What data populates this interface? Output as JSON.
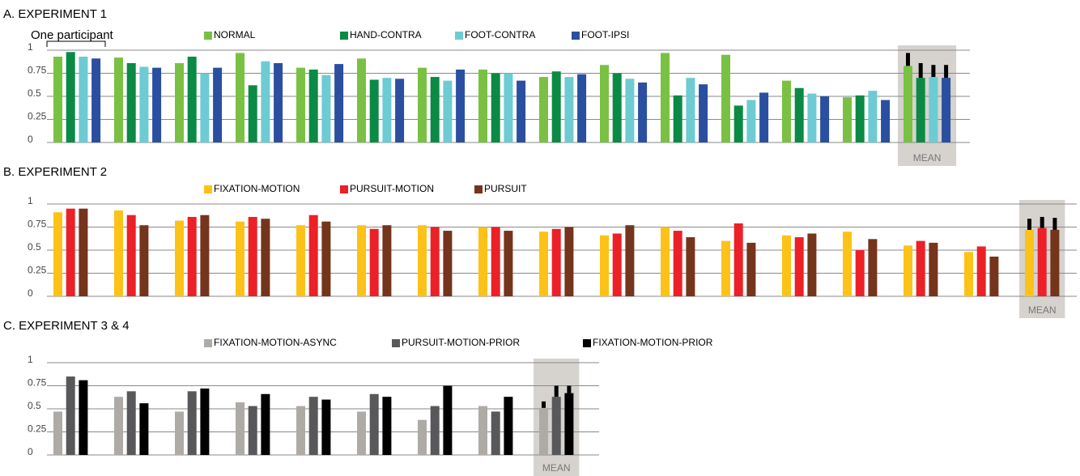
{
  "chart_data": [
    {
      "type": "bar",
      "title": "A. EXPERIMENT 1",
      "annotation": "One participant",
      "categories": [
        null,
        null,
        null,
        null,
        null,
        null,
        null,
        null,
        null,
        null,
        null,
        null,
        null,
        null,
        "MEAN"
      ],
      "series": [
        {
          "name": "NORMAL",
          "color": "#7ac143",
          "values": [
            0.93,
            0.92,
            0.86,
            0.97,
            0.81,
            0.91,
            0.81,
            0.79,
            0.71,
            0.84,
            0.97,
            0.95,
            0.67,
            0.49,
            0.83
          ],
          "errors": [
            null,
            null,
            null,
            null,
            null,
            null,
            null,
            null,
            null,
            null,
            null,
            null,
            null,
            null,
            0.14
          ]
        },
        {
          "name": "HAND-CONTRA",
          "color": "#0a8a44",
          "values": [
            0.98,
            0.86,
            0.93,
            0.62,
            0.79,
            0.68,
            0.71,
            0.75,
            0.77,
            0.75,
            0.51,
            0.4,
            0.59,
            0.51,
            0.7
          ],
          "errors": [
            null,
            null,
            null,
            null,
            null,
            null,
            null,
            null,
            null,
            null,
            null,
            null,
            null,
            null,
            0.16
          ]
        },
        {
          "name": "FOOT-CONTRA",
          "color": "#6dcbd3",
          "values": [
            0.93,
            0.82,
            0.75,
            0.88,
            0.73,
            0.7,
            0.67,
            0.75,
            0.71,
            0.69,
            0.7,
            0.46,
            0.53,
            0.56,
            0.71
          ],
          "errors": [
            null,
            null,
            null,
            null,
            null,
            null,
            null,
            null,
            null,
            null,
            null,
            null,
            null,
            null,
            0.13
          ]
        },
        {
          "name": "FOOT-IPSI",
          "color": "#2a4fa0",
          "values": [
            0.91,
            0.81,
            0.81,
            0.86,
            0.85,
            0.69,
            0.79,
            0.67,
            0.74,
            0.65,
            0.63,
            0.54,
            0.5,
            0.46,
            0.7
          ],
          "errors": [
            null,
            null,
            null,
            null,
            null,
            null,
            null,
            null,
            null,
            null,
            null,
            null,
            null,
            null,
            0.14
          ]
        }
      ],
      "ylim": [
        0,
        1
      ],
      "yticks": [
        0,
        0.25,
        0.5,
        0.75,
        1
      ]
    },
    {
      "type": "bar",
      "title": "B. EXPERIMENT 2",
      "categories": [
        null,
        null,
        null,
        null,
        null,
        null,
        null,
        null,
        null,
        null,
        null,
        null,
        null,
        null,
        null,
        null,
        "MEAN"
      ],
      "series": [
        {
          "name": "FIXATION-MOTION",
          "color": "#fdc217",
          "values": [
            0.91,
            0.93,
            0.82,
            0.81,
            0.77,
            0.77,
            0.77,
            0.75,
            0.7,
            0.66,
            0.75,
            0.6,
            0.66,
            0.7,
            0.55,
            0.48,
            0.72
          ],
          "errors": [
            null,
            null,
            null,
            null,
            null,
            null,
            null,
            null,
            null,
            null,
            null,
            null,
            null,
            null,
            null,
            null,
            0.12
          ]
        },
        {
          "name": "PURSUIT-MOTION",
          "color": "#ec2027",
          "values": [
            0.95,
            0.88,
            0.86,
            0.86,
            0.88,
            0.73,
            0.75,
            0.75,
            0.73,
            0.68,
            0.71,
            0.79,
            0.64,
            0.5,
            0.6,
            0.54,
            0.74
          ],
          "errors": [
            null,
            null,
            null,
            null,
            null,
            null,
            null,
            null,
            null,
            null,
            null,
            null,
            null,
            null,
            null,
            null,
            0.12
          ]
        },
        {
          "name": "PURSUIT",
          "color": "#75341c",
          "values": [
            0.95,
            0.77,
            0.88,
            0.84,
            0.81,
            0.77,
            0.71,
            0.71,
            0.75,
            0.77,
            0.64,
            0.58,
            0.68,
            0.62,
            0.58,
            0.43,
            0.72
          ],
          "errors": [
            null,
            null,
            null,
            null,
            null,
            null,
            null,
            null,
            null,
            null,
            null,
            null,
            null,
            null,
            null,
            null,
            0.13
          ]
        }
      ],
      "ylim": [
        0,
        1
      ],
      "yticks": [
        0,
        0.25,
        0.5,
        0.75,
        1
      ]
    },
    {
      "type": "bar",
      "title": "C. EXPERIMENT 3 & 4",
      "categories": [
        null,
        null,
        null,
        null,
        null,
        null,
        null,
        null,
        "MEAN"
      ],
      "series": [
        {
          "name": "FIXATION-MOTION-ASYNC",
          "color": "#aeaaa6",
          "values": [
            0.47,
            0.63,
            0.47,
            0.57,
            0.53,
            0.47,
            0.38,
            0.53,
            0.51
          ],
          "errors": [
            null,
            null,
            null,
            null,
            null,
            null,
            null,
            null,
            0.07
          ]
        },
        {
          "name": "PURSUIT-MOTION-PRIOR",
          "color": "#58585a",
          "values": [
            0.85,
            0.69,
            0.69,
            0.53,
            0.63,
            0.66,
            0.53,
            0.47,
            0.63
          ],
          "errors": [
            null,
            null,
            null,
            null,
            null,
            null,
            null,
            null,
            0.12
          ]
        },
        {
          "name": "FIXATION-MOTION-PRIOR",
          "color": "#000000",
          "values": [
            0.81,
            0.56,
            0.72,
            0.66,
            0.6,
            0.63,
            0.75,
            0.63,
            0.67
          ],
          "errors": [
            null,
            null,
            null,
            null,
            null,
            null,
            null,
            null,
            0.08
          ]
        }
      ],
      "ylim": [
        0,
        1
      ],
      "yticks": [
        0,
        0.25,
        0.5,
        0.75,
        1
      ]
    }
  ]
}
